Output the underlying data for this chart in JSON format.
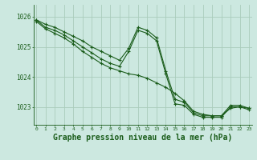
{
  "background_color": "#cce8e0",
  "grid_color": "#aaccbb",
  "line_color": "#1a5c1a",
  "xlabel": "Graphe pression niveau de la mer (hPa)",
  "xlabel_fontsize": 7,
  "ytick_values": [
    1023,
    1024,
    1025,
    1026
  ],
  "ylim": [
    1022.4,
    1026.4
  ],
  "xlim": [
    -0.3,
    23.3
  ],
  "series": [
    [
      1025.9,
      1025.75,
      1025.65,
      1025.5,
      1025.35,
      1025.2,
      1025.0,
      1024.85,
      1024.7,
      1024.55,
      1024.95,
      1025.65,
      1025.55,
      1025.3,
      1024.2,
      1023.25,
      1023.15,
      1022.8,
      1022.7,
      1022.7,
      1022.7,
      1023.05,
      1023.05,
      1022.95
    ],
    [
      1025.9,
      1025.65,
      1025.55,
      1025.4,
      1025.2,
      1025.0,
      1024.8,
      1024.6,
      1024.45,
      1024.35,
      1024.85,
      1025.55,
      1025.45,
      1025.2,
      1024.1,
      1023.1,
      1023.05,
      1022.75,
      1022.65,
      1022.65,
      1022.65,
      1023.0,
      1023.0,
      1022.9
    ],
    [
      1025.85,
      1025.6,
      1025.45,
      1025.3,
      1025.1,
      1024.85,
      1024.65,
      1024.45,
      1024.3,
      1024.2,
      1024.1,
      1024.05,
      1023.95,
      1023.8,
      1023.65,
      1023.45,
      1023.2,
      1022.85,
      1022.75,
      1022.7,
      1022.7,
      1022.95,
      1023.0,
      1022.95
    ]
  ]
}
